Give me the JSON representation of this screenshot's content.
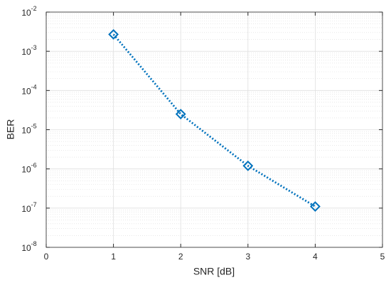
{
  "chart_data": {
    "type": "line",
    "xlabel": "SNR [dB]",
    "ylabel": "BER",
    "x": [
      1,
      2,
      3,
      4
    ],
    "series": [
      {
        "color": "#0072bd",
        "values": [
          0.0027,
          2.5e-05,
          1.2e-06,
          1.1e-07
        ]
      }
    ],
    "xlim": [
      0,
      5
    ],
    "xticks": [
      0,
      1,
      2,
      3,
      4,
      5
    ],
    "ylim": [
      1e-08,
      0.01
    ],
    "yscale": "log",
    "yticks": [
      {
        "value": 1e-08,
        "label": "10^-8"
      },
      {
        "value": 1e-07,
        "label": "10^-7"
      },
      {
        "value": 1e-06,
        "label": "10^-6"
      },
      {
        "value": 1e-05,
        "label": "10^-5"
      },
      {
        "value": 0.0001,
        "label": "10^-4"
      },
      {
        "value": 0.001,
        "label": "10^-3"
      },
      {
        "value": 0.01,
        "label": "10^-2"
      }
    ],
    "grid": true,
    "minor_grid": true
  }
}
